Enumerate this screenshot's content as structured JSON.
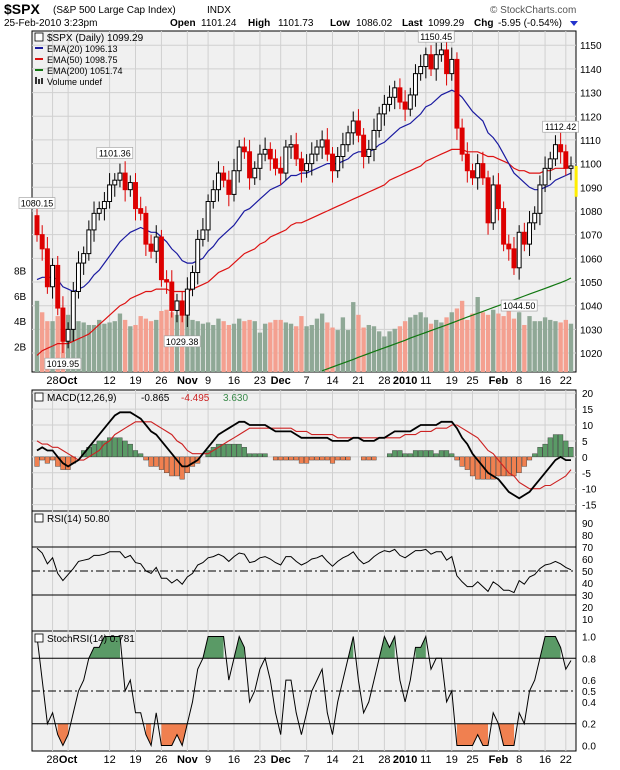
{
  "header": {
    "symbol": "$SPX",
    "name": "(S&P 500 Large Cap Index)",
    "exchange": "INDX",
    "date": "25-Feb-2010 3:23pm",
    "open_label": "Open",
    "open": "1101.24",
    "high_label": "High",
    "high": "1101.73",
    "low_label": "Low",
    "low": "1086.02",
    "last_label": "Last",
    "last": "1099.29",
    "chg_label": "Chg",
    "chg": "-5.95 (-0.54%)",
    "watermark": "© StockCharts.com"
  },
  "colors": {
    "up": "#000000",
    "down": "#dd0000",
    "ema20": "#1a1aa0",
    "ema50": "#dd1111",
    "ema200": "#117711",
    "vol_up": "#8fa896",
    "vol_down": "#f4a090",
    "macd_line": "#000000",
    "macd_signal": "#cc2222",
    "hist_pos": "#5a9a66",
    "hist_neg": "#f08050",
    "stoch_fill_hi": "#5a9a66",
    "stoch_fill_lo": "#f08050",
    "last_bar": "#ffee00"
  },
  "chart_data": [
    {
      "type": "candlestick",
      "title": "$SPX (Daily) 1099.29",
      "legend": [
        {
          "label": "EMA(20) 1096.13",
          "color": "#1a1aa0"
        },
        {
          "label": "EMA(50) 1098.75",
          "color": "#dd1111"
        },
        {
          "label": "EMA(200) 1051.74",
          "color": "#117711"
        },
        {
          "label": "Volume undef",
          "color": "#333333"
        }
      ],
      "legend_placement": "top-left",
      "ylim": [
        1012,
        1156
      ],
      "y_ticks": [
        1020,
        1030,
        1040,
        1050,
        1060,
        1070,
        1080,
        1090,
        1100,
        1110,
        1120,
        1130,
        1140,
        1150
      ],
      "volume_ticks": [
        "2B",
        "4B",
        "6B",
        "8B"
      ],
      "volume_max": 9.6,
      "x_labels": [
        {
          "i": 3,
          "label": "28"
        },
        {
          "i": 6,
          "label": "Oct",
          "bold": true
        },
        {
          "i": 14,
          "label": "12"
        },
        {
          "i": 19,
          "label": "19"
        },
        {
          "i": 24,
          "label": "26"
        },
        {
          "i": 29,
          "label": "Nov",
          "bold": true
        },
        {
          "i": 33,
          "label": "9"
        },
        {
          "i": 38,
          "label": "16"
        },
        {
          "i": 43,
          "label": "23"
        },
        {
          "i": 47,
          "label": "Dec",
          "bold": true
        },
        {
          "i": 52,
          "label": "7"
        },
        {
          "i": 57,
          "label": "14"
        },
        {
          "i": 62,
          "label": "21"
        },
        {
          "i": 67,
          "label": "28"
        },
        {
          "i": 71,
          "label": "2010",
          "bold": true
        },
        {
          "i": 75,
          "label": "11"
        },
        {
          "i": 80,
          "label": "19"
        },
        {
          "i": 84,
          "label": "25"
        },
        {
          "i": 89,
          "label": "Feb",
          "bold": true
        },
        {
          "i": 93,
          "label": "8"
        },
        {
          "i": 98,
          "label": "16"
        },
        {
          "i": 102,
          "label": "22"
        }
      ],
      "annotations": [
        {
          "i": 0,
          "value": 1080.15,
          "label": "1080.15",
          "pos": "above"
        },
        {
          "i": 5,
          "value": 1019.95,
          "label": "1019.95",
          "pos": "below"
        },
        {
          "i": 15,
          "value": 1101.36,
          "label": "1101.36",
          "pos": "above"
        },
        {
          "i": 28,
          "value": 1029.38,
          "label": "1029.38",
          "pos": "below"
        },
        {
          "i": 77,
          "value": 1150.45,
          "label": "1150.45",
          "pos": "above"
        },
        {
          "i": 93,
          "value": 1044.5,
          "label": "1044.50",
          "pos": "below"
        },
        {
          "i": 101,
          "value": 1112.42,
          "label": "1112.42",
          "pos": "above"
        }
      ],
      "close": [
        1070,
        1064,
        1048,
        1057,
        1039,
        1025,
        1030,
        1046,
        1058,
        1062,
        1072,
        1079,
        1081,
        1084,
        1091,
        1093,
        1096,
        1089,
        1092,
        1081,
        1079,
        1066,
        1063,
        1069,
        1051,
        1050,
        1038,
        1042,
        1036,
        1047,
        1054,
        1068,
        1072,
        1084,
        1089,
        1096,
        1093,
        1087,
        1097,
        1107,
        1105,
        1094,
        1098,
        1104,
        1106,
        1102,
        1098,
        1096,
        1107,
        1108,
        1102,
        1097,
        1100,
        1104,
        1107,
        1110,
        1104,
        1097,
        1103,
        1108,
        1113,
        1118,
        1112,
        1103,
        1106,
        1114,
        1121,
        1125,
        1128,
        1132,
        1126,
        1123,
        1129,
        1138,
        1141,
        1146,
        1140,
        1146,
        1148,
        1138,
        1144,
        1115,
        1104,
        1097,
        1094,
        1100,
        1094,
        1075,
        1091,
        1081,
        1066,
        1064,
        1056,
        1071,
        1066,
        1075,
        1079,
        1091,
        1098,
        1102,
        1108,
        1105,
        1098,
        1099
      ],
      "ema20": [
        1051,
        1052,
        1052,
        1052,
        1051,
        1048,
        1047,
        1046,
        1047,
        1048,
        1050,
        1053,
        1055,
        1058,
        1061,
        1064,
        1067,
        1069,
        1071,
        1072,
        1073,
        1072,
        1071,
        1071,
        1069,
        1067,
        1064,
        1062,
        1059,
        1058,
        1058,
        1059,
        1060,
        1063,
        1065,
        1068,
        1070,
        1072,
        1074,
        1077,
        1080,
        1081,
        1083,
        1085,
        1087,
        1089,
        1090,
        1091,
        1093,
        1095,
        1095,
        1096,
        1096,
        1097,
        1098,
        1099,
        1100,
        1100,
        1100,
        1101,
        1102,
        1104,
        1105,
        1105,
        1105,
        1106,
        1108,
        1109,
        1111,
        1113,
        1115,
        1116,
        1117,
        1119,
        1121,
        1124,
        1125,
        1127,
        1129,
        1130,
        1131,
        1130,
        1128,
        1125,
        1122,
        1120,
        1118,
        1113,
        1111,
        1108,
        1104,
        1100,
        1096,
        1094,
        1092,
        1090,
        1089,
        1089,
        1090,
        1091,
        1093,
        1094,
        1095,
        1096
      ],
      "ema50": [
        1019,
        1021,
        1022,
        1023,
        1024,
        1024,
        1024,
        1025,
        1026,
        1027,
        1028,
        1030,
        1032,
        1034,
        1036,
        1038,
        1040,
        1041,
        1043,
        1044,
        1045,
        1046,
        1046,
        1047,
        1047,
        1047,
        1046,
        1046,
        1046,
        1046,
        1047,
        1048,
        1049,
        1050,
        1052,
        1054,
        1055,
        1056,
        1058,
        1060,
        1062,
        1063,
        1064,
        1066,
        1067,
        1069,
        1070,
        1071,
        1072,
        1074,
        1075,
        1075,
        1076,
        1077,
        1078,
        1079,
        1080,
        1081,
        1082,
        1083,
        1084,
        1085,
        1086,
        1087,
        1088,
        1089,
        1090,
        1091,
        1093,
        1094,
        1095,
        1096,
        1097,
        1098,
        1099,
        1101,
        1102,
        1103,
        1104,
        1105,
        1106,
        1106,
        1106,
        1105,
        1105,
        1105,
        1104,
        1103,
        1103,
        1102,
        1101,
        1100,
        1098,
        1097,
        1097,
        1096,
        1096,
        1096,
        1097,
        1097,
        1098,
        1098,
        1098,
        1099
      ],
      "ema200": [
        null,
        null,
        null,
        null,
        null,
        null,
        null,
        null,
        null,
        null,
        null,
        null,
        null,
        null,
        null,
        null,
        null,
        null,
        null,
        null,
        null,
        null,
        null,
        null,
        null,
        null,
        null,
        null,
        null,
        null,
        null,
        null,
        null,
        null,
        null,
        null,
        null,
        null,
        null,
        null,
        null,
        null,
        null,
        null,
        null,
        null,
        null,
        null,
        null,
        null,
        null,
        null,
        null,
        null,
        null,
        1012.5,
        1013.3,
        1014.1,
        1014.9,
        1015.7,
        1016.5,
        1017.3,
        1018.2,
        1019.0,
        1019.8,
        1020.6,
        1021.4,
        1022.2,
        1023.0,
        1023.8,
        1024.6,
        1025.4,
        1026.3,
        1027.1,
        1027.9,
        1028.7,
        1029.5,
        1030.3,
        1031.1,
        1031.9,
        1032.7,
        1033.5,
        1034.4,
        1035.2,
        1036.0,
        1036.8,
        1037.6,
        1038.4,
        1039.2,
        1040.0,
        1040.8,
        1041.6,
        1042.5,
        1043.3,
        1044.1,
        1044.9,
        1045.7,
        1046.5,
        1047.3,
        1048.1,
        1048.9,
        1049.7,
        1050.6,
        1051.7
      ],
      "volume": [
        5.6,
        4.7,
        4.0,
        4.0,
        4.4,
        4.1,
        4.5,
        3.8,
        4.0,
        3.9,
        3.7,
        3.7,
        4.1,
        3.8,
        3.9,
        4.0,
        4.6,
        4.1,
        3.6,
        3.7,
        4.4,
        4.2,
        4.0,
        4.1,
        4.8,
        4.9,
        4.7,
        4.5,
        4.8,
        4.4,
        4.1,
        4.0,
        3.8,
        3.9,
        3.7,
        4.2,
        4.0,
        3.7,
        3.8,
        4.2,
        4.0,
        4.1,
        4.0,
        3.1,
        3.8,
        3.9,
        4.1,
        4.1,
        3.9,
        3.8,
        3.6,
        4.4,
        3.6,
        3.7,
        4.2,
        4.6,
        3.9,
        3.5,
        3.3,
        4.3,
        3.3,
        5.5,
        4.5,
        3.5,
        3.7,
        3.6,
        3.2,
        2.8,
        3.2,
        3.4,
        3.6,
        4.0,
        4.3,
        4.5,
        4.7,
        4.3,
        3.8,
        4.1,
        3.9,
        4.3,
        4.7,
        5.0,
        5.6,
        4.1,
        4.6,
        5.9,
        4.7,
        4.5,
        4.9,
        4.6,
        4.4,
        5.4,
        4.2,
        4.7,
        3.7,
        4.4,
        4.0,
        4.0,
        4.3,
        4.1,
        4.0,
        3.9,
        4.1,
        3.8
      ]
    },
    {
      "type": "line",
      "title": "MACD(12,26,9) -0.865, -4.495, 3.630",
      "series_labels": [
        "MACD(12,26,9)",
        "-0.865",
        "-4.495",
        "3.630"
      ],
      "ylim": [
        -17,
        21
      ],
      "y_ticks": [
        20,
        15,
        10,
        5,
        0,
        -5,
        -10,
        -15
      ],
      "macd": [
        2,
        3,
        2,
        2,
        0,
        -2,
        -3,
        -2,
        -1,
        1,
        3,
        5,
        7,
        9,
        11,
        13,
        14,
        14,
        14,
        13,
        12,
        10,
        8,
        7,
        5,
        3,
        1,
        -1,
        -3,
        -3,
        -2,
        -1,
        1,
        3,
        5,
        7,
        8,
        9,
        10,
        11,
        11,
        10,
        10,
        10,
        10,
        9,
        8,
        8,
        8,
        8,
        7,
        6,
        6,
        6,
        6,
        6,
        6,
        5,
        5,
        5,
        5,
        6,
        6,
        5,
        5,
        5,
        6,
        6,
        7,
        8,
        8,
        8,
        8,
        9,
        10,
        10,
        10,
        10,
        11,
        11,
        11,
        9,
        6,
        4,
        1,
        -1,
        -3,
        -5,
        -6,
        -7,
        -9,
        -11,
        -12,
        -13,
        -12,
        -11,
        -9,
        -7,
        -5,
        -3,
        -1,
        0,
        -1,
        -1
      ],
      "signal": [
        5,
        4,
        4,
        3,
        3,
        2,
        1,
        0,
        -1,
        -1,
        0,
        1,
        2,
        4,
        5,
        7,
        8,
        9,
        10,
        11,
        11,
        11,
        11,
        10,
        9,
        8,
        7,
        5,
        4,
        2,
        1,
        1,
        1,
        1,
        2,
        3,
        4,
        5,
        6,
        7,
        8,
        9,
        9,
        9,
        9,
        9,
        9,
        9,
        9,
        9,
        8,
        8,
        8,
        7,
        7,
        7,
        7,
        7,
        6,
        6,
        6,
        6,
        6,
        6,
        6,
        6,
        6,
        6,
        6,
        6,
        6,
        7,
        7,
        7,
        8,
        8,
        8,
        9,
        9,
        9,
        10,
        10,
        9,
        8,
        7,
        6,
        4,
        2,
        1,
        -1,
        -3,
        -5,
        -6,
        -8,
        -9,
        -10,
        -10,
        -10,
        -9,
        -9,
        -8,
        -7,
        -6,
        -4
      ],
      "histogram": [
        -3,
        -1,
        -2,
        -1,
        -3,
        -4,
        -4,
        -2,
        0,
        2,
        3,
        4,
        5,
        5,
        6,
        6,
        6,
        5,
        4,
        2,
        1,
        -1,
        -3,
        -3,
        -4,
        -5,
        -6,
        -6,
        -7,
        -5,
        -3,
        -2,
        0,
        2,
        3,
        4,
        4,
        4,
        4,
        4,
        3,
        1,
        1,
        1,
        1,
        0,
        -1,
        -1,
        -1,
        -1,
        -1,
        -2,
        -2,
        -1,
        -1,
        -1,
        -1,
        -2,
        -1,
        -1,
        -1,
        0,
        0,
        -1,
        -1,
        -1,
        0,
        0,
        1,
        2,
        2,
        1,
        1,
        2,
        2,
        2,
        2,
        1,
        2,
        2,
        1,
        -1,
        -3,
        -4,
        -6,
        -7,
        -7,
        -7,
        -7,
        -6,
        -6,
        -6,
        -6,
        -5,
        -3,
        -1,
        1,
        3,
        4,
        6,
        7,
        7,
        5,
        3
      ]
    },
    {
      "type": "line",
      "title": "RSI(14) 50.80",
      "ylim": [
        0,
        100
      ],
      "y_ticks": [
        90,
        80,
        70,
        60,
        50,
        40,
        30,
        20,
        10
      ],
      "hlines": [
        70,
        50,
        30
      ],
      "rsi": [
        69,
        65,
        56,
        61,
        48,
        42,
        47,
        52,
        58,
        59,
        60,
        63,
        63,
        64,
        66,
        66,
        66,
        61,
        63,
        57,
        56,
        50,
        48,
        53,
        44,
        44,
        40,
        43,
        39,
        45,
        48,
        55,
        57,
        61,
        62,
        64,
        62,
        58,
        62,
        65,
        64,
        57,
        58,
        61,
        62,
        60,
        57,
        55,
        62,
        62,
        58,
        55,
        57,
        60,
        61,
        63,
        58,
        54,
        58,
        61,
        63,
        66,
        60,
        56,
        58,
        62,
        65,
        67,
        66,
        68,
        63,
        61,
        64,
        67,
        67,
        68,
        64,
        66,
        66,
        59,
        62,
        46,
        41,
        37,
        37,
        41,
        37,
        33,
        41,
        38,
        34,
        34,
        32,
        42,
        39,
        45,
        47,
        52,
        55,
        56,
        58,
        56,
        53,
        51
      ]
    },
    {
      "type": "area",
      "title": "StochRSI(14) 0.781",
      "ylim": [
        -0.05,
        1.05
      ],
      "y_ticks": [
        1.0,
        0.8,
        0.6,
        0.5,
        0.4,
        0.2,
        0.0
      ],
      "hlines": [
        0.8,
        0.5,
        0.2
      ],
      "stochrsi": [
        1,
        0.6,
        0.2,
        0.3,
        0.1,
        0,
        0.1,
        0.3,
        0.5,
        0.6,
        0.8,
        0.9,
        0.9,
        1,
        1,
        1,
        1,
        0.5,
        0.6,
        0.3,
        0.3,
        0.1,
        0,
        0.3,
        0,
        0,
        0,
        0.1,
        0,
        0.2,
        0.4,
        0.7,
        0.8,
        1,
        1,
        1,
        1,
        0.6,
        0.8,
        1,
        0.9,
        0.4,
        0.5,
        0.7,
        0.8,
        0.6,
        0.3,
        0.1,
        0.6,
        0.6,
        0.3,
        0.1,
        0.3,
        0.5,
        0.6,
        0.7,
        0.3,
        0.1,
        0.4,
        0.6,
        0.8,
        1,
        0.6,
        0.3,
        0.4,
        0.6,
        0.8,
        1,
        0.9,
        1,
        0.6,
        0.4,
        0.6,
        0.9,
        0.9,
        1,
        0.7,
        0.8,
        0.8,
        0.4,
        0.5,
        0,
        0,
        0,
        0,
        0.1,
        0,
        0,
        0.3,
        0.2,
        0,
        0,
        0,
        0.3,
        0.2,
        0.5,
        0.6,
        0.8,
        1,
        1,
        1,
        0.9,
        0.7,
        0.78
      ]
    }
  ]
}
